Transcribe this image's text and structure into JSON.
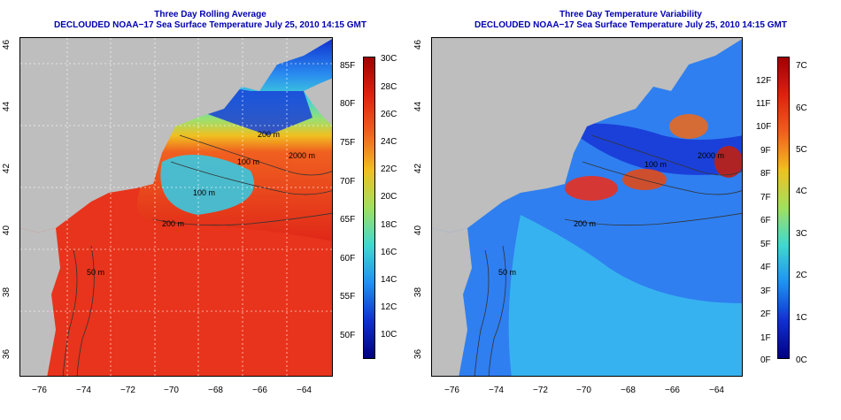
{
  "left_panel": {
    "title_line1": "Three Day Rolling Average",
    "title_line2": "DECLOUDED NOAA−17 Sea Surface Temperature July 25, 2010 14:15 GMT",
    "colorbar_left_labels": [
      "85F",
      "80F",
      "75F",
      "70F",
      "65F",
      "60F",
      "55F",
      "50F"
    ],
    "colorbar_right_labels": [
      "30C",
      "28C",
      "26C",
      "24C",
      "22C",
      "20C",
      "18C",
      "16C",
      "14C",
      "12C",
      "10C"
    ],
    "contour_labels": [
      "200 m",
      "100 m",
      "100 m",
      "2000 m",
      "200 m",
      "50 m"
    ]
  },
  "right_panel": {
    "title_line1": "Three Day Temperature Variability",
    "title_line2": "DECLOUDED NOAA−17 Sea Surface Temperature July 25, 2010 14:15 GMT",
    "colorbar_left_labels": [
      "12F",
      "11F",
      "10F",
      "9F",
      "8F",
      "7F",
      "6F",
      "5F",
      "4F",
      "3F",
      "2F",
      "1F",
      "0F"
    ],
    "colorbar_right_labels": [
      "7C",
      "6C",
      "5C",
      "4C",
      "3C",
      "2C",
      "1C",
      "0C"
    ],
    "contour_labels": [
      "100 m",
      "2000 m",
      "200 m",
      "50 m"
    ]
  },
  "axes": {
    "x_ticks": [
      "−76",
      "−74",
      "−72",
      "−70",
      "−68",
      "−66",
      "−64"
    ],
    "y_ticks": [
      "46",
      "44",
      "42",
      "40",
      "38",
      "36"
    ]
  },
  "colors": {
    "title": "#0000b0",
    "land": "#bebebe",
    "warm_water": "#e8341c",
    "cold_water": "#1a3ad6"
  }
}
